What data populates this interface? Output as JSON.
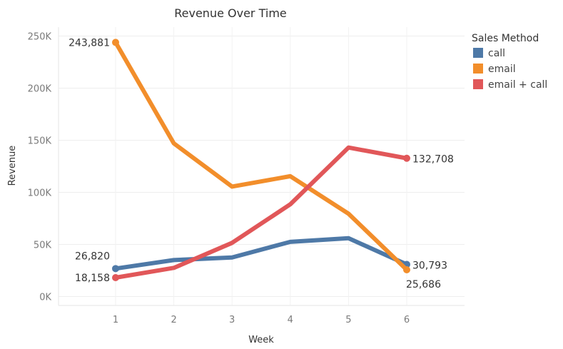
{
  "chart_data": {
    "type": "line",
    "title": "Revenue Over Time",
    "xlabel": "Week",
    "ylabel": "Revenue",
    "x": [
      1,
      2,
      3,
      4,
      5,
      6
    ],
    "ylim": [
      -5000,
      262000
    ],
    "yticks": [
      0,
      50000,
      100000,
      150000,
      200000,
      250000
    ],
    "ytick_labels": [
      "0K",
      "50K",
      "100K",
      "150K",
      "200K",
      "250K"
    ],
    "grid": true,
    "legend": {
      "title": "Sales Method",
      "position": "top-right"
    },
    "series": [
      {
        "name": "call",
        "color": "#4E79A7",
        "values": [
          26820,
          35000,
          37500,
          52500,
          56000,
          30793
        ]
      },
      {
        "name": "email",
        "color": "#F28E2B",
        "values": [
          243881,
          147000,
          105500,
          115500,
          79500,
          25686
        ]
      },
      {
        "name": "email + call",
        "color": "#E15759",
        "values": [
          18158,
          27500,
          51500,
          88500,
          143000,
          132708
        ]
      }
    ],
    "data_labels": [
      {
        "series": 0,
        "index": 0,
        "text": "26,820"
      },
      {
        "series": 0,
        "index": 5,
        "text": "30,793"
      },
      {
        "series": 1,
        "index": 0,
        "text": "243,881"
      },
      {
        "series": 1,
        "index": 5,
        "text": "25,686"
      },
      {
        "series": 2,
        "index": 0,
        "text": "18,158"
      },
      {
        "series": 2,
        "index": 5,
        "text": "132,708"
      }
    ]
  }
}
